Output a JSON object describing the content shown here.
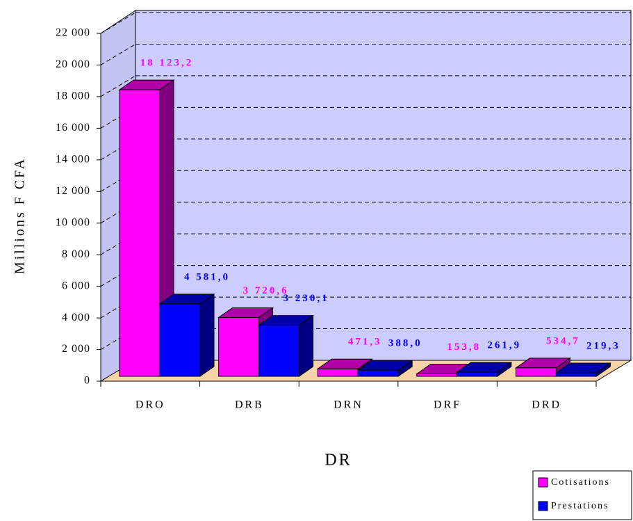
{
  "chart_data": {
    "type": "bar3d",
    "y_axis_label": "Millions F CFA",
    "x_axis_label": "DR",
    "categories": [
      "DRO",
      "DRB",
      "DRN",
      "DRF",
      "DRD"
    ],
    "series": [
      {
        "name": "Cotisations",
        "color": "#ff00ff",
        "values": [
          18123.2,
          3720.6,
          471.3,
          153.8,
          534.7
        ],
        "value_labels": [
          "18 123,2",
          "3 720,6",
          "471,3",
          "153,8",
          "534,7"
        ]
      },
      {
        "name": "Prestations",
        "color": "#0000ff",
        "values": [
          4581.0,
          3230.1,
          388.0,
          261.9,
          219.3
        ],
        "value_labels": [
          "4 581,0",
          "3 230,1",
          "388,0",
          "261,9",
          "219,3"
        ]
      }
    ],
    "ylim": [
      0,
      22000
    ],
    "yticks": [
      0,
      {
        "value": 2000,
        "label": "2 000"
      },
      {
        "value": 4000,
        "label": "4 000"
      },
      {
        "value": 6000,
        "label": "6 000"
      },
      {
        "value": 8000,
        "label": "8 000"
      },
      {
        "value": 10000,
        "label": "10 000"
      },
      {
        "value": 12000,
        "label": "12 000"
      },
      {
        "value": 14000,
        "label": "14 000"
      },
      {
        "value": 16000,
        "label": "16 000"
      },
      {
        "value": 18000,
        "label": "18 000"
      },
      {
        "value": 20000,
        "label": "20 000"
      },
      {
        "value": 22000,
        "label": "22 000"
      }
    ],
    "grid": true,
    "legend": "bottom-right"
  }
}
